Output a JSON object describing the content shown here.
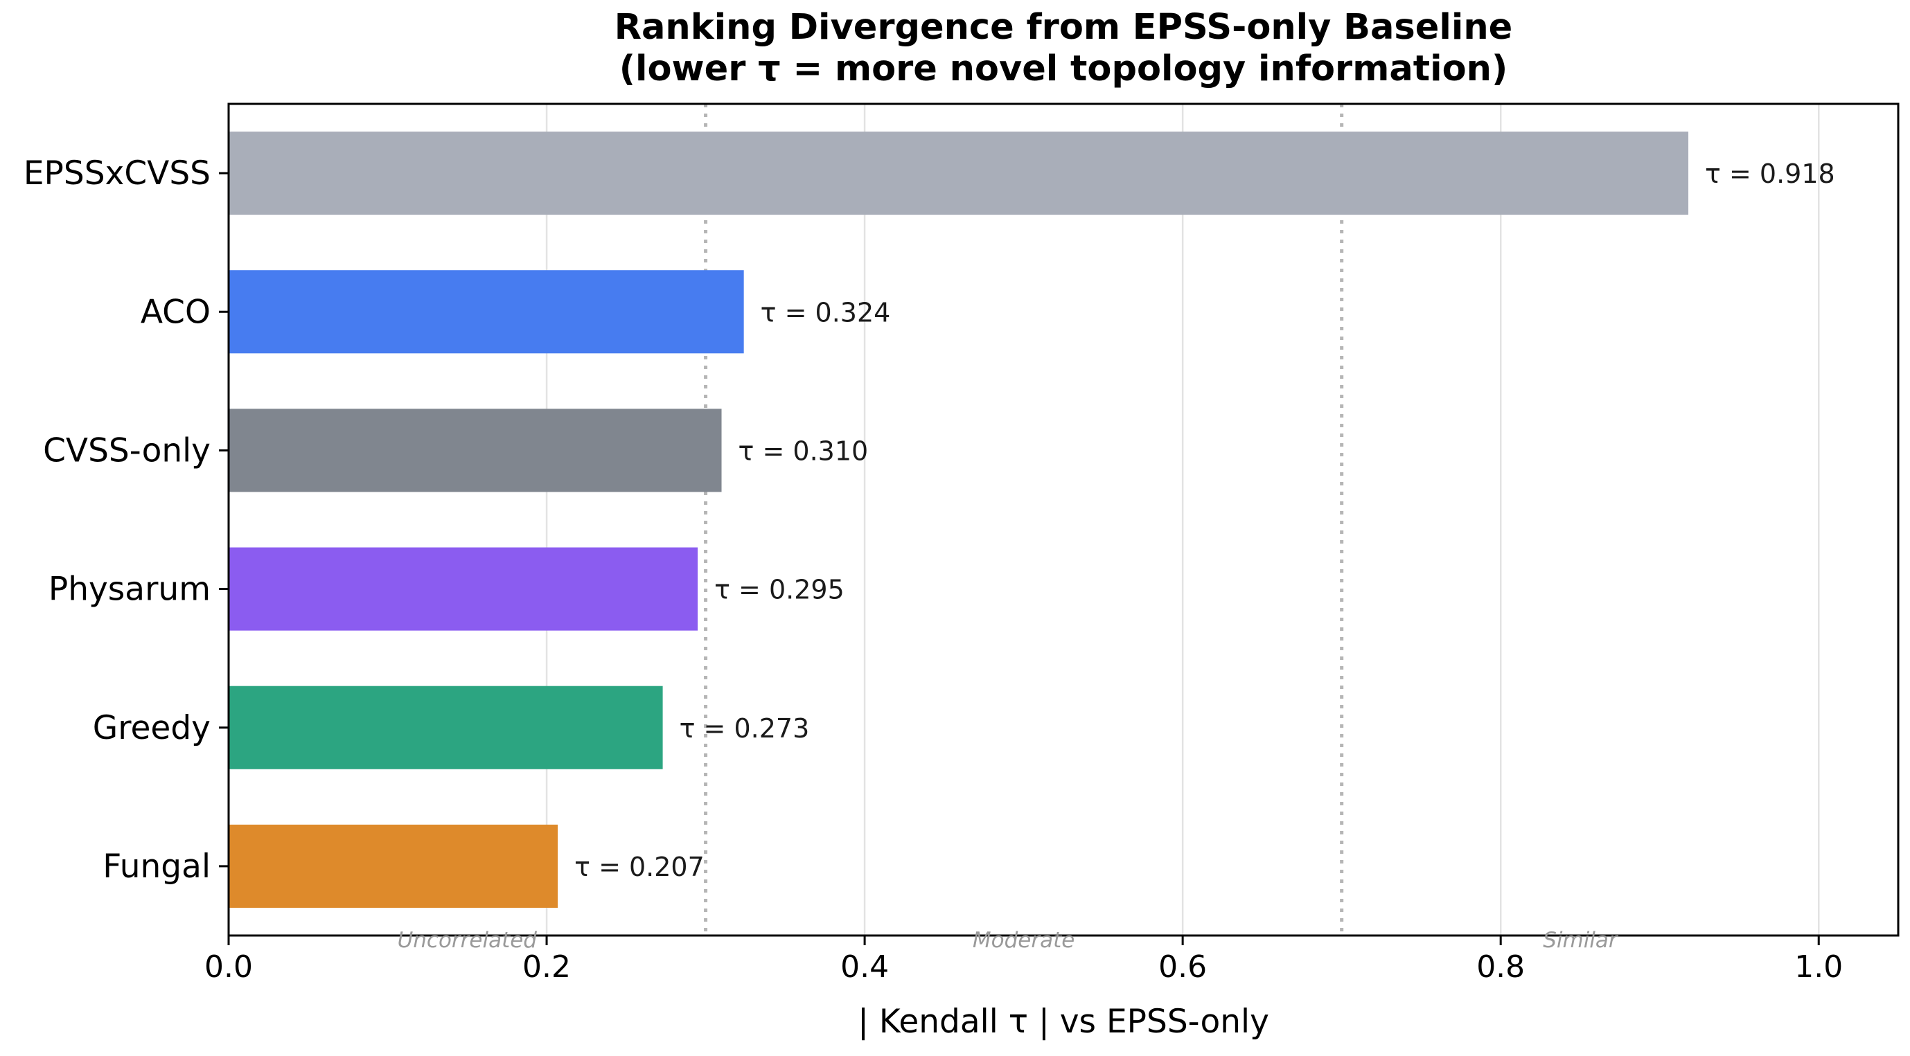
{
  "chart_data": {
    "type": "bar",
    "orientation": "horizontal",
    "title": "Ranking Divergence from EPSS-only Baseline",
    "subtitle": "(lower τ = more novel topology information)",
    "xlabel": "| Kendall τ | vs EPSS-only",
    "ylabel": "",
    "xlim": [
      0,
      1.05
    ],
    "xticks": [
      0.0,
      0.2,
      0.4,
      0.6,
      0.8,
      1.0
    ],
    "xtick_labels": [
      "0.0",
      "0.2",
      "0.4",
      "0.6",
      "0.8",
      "1.0"
    ],
    "grid": "vertical",
    "categories": [
      "EPSSxCVSS",
      "ACO",
      "CVSS-only",
      "Physarum",
      "Greedy",
      "Fungal"
    ],
    "values": [
      0.918,
      0.324,
      0.31,
      0.295,
      0.273,
      0.207
    ],
    "value_labels": [
      "τ = 0.918",
      "τ = 0.324",
      "τ = 0.310",
      "τ = 0.295",
      "τ = 0.273",
      "τ = 0.207"
    ],
    "colors": [
      "#a9aeb9",
      "#477cf0",
      "#80868f",
      "#8b5cf0",
      "#2ca581",
      "#de8a2b"
    ],
    "reference_lines": [
      {
        "x": 0.3,
        "style": "dotted"
      },
      {
        "x": 0.7,
        "style": "dotted"
      }
    ],
    "zone_labels": [
      {
        "text": "Uncorrelated",
        "x": 0.15
      },
      {
        "text": "Moderate",
        "x": 0.5
      },
      {
        "text": "Similar",
        "x": 0.85
      }
    ]
  }
}
